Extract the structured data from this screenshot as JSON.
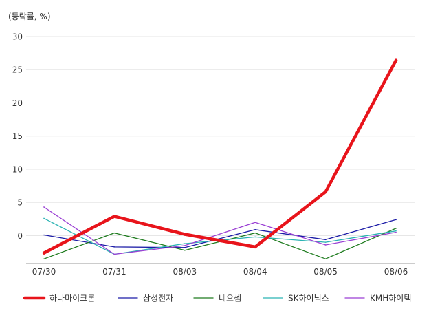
{
  "chart_data": {
    "type": "line",
    "unit_label": "(등락률, %)",
    "x": [
      "07/30",
      "07/31",
      "08/03",
      "08/04",
      "08/05",
      "08/06"
    ],
    "ylim": [
      -4.2,
      30
    ],
    "yticks": [
      0,
      5,
      10,
      15,
      20,
      25,
      30
    ],
    "grid": true,
    "legend_position": "bottom",
    "series": [
      {
        "name": "하나마이크론",
        "color": "#e8141b",
        "emphasis": true,
        "values": [
          -2.6,
          2.9,
          0.2,
          -1.7,
          6.6,
          26.4
        ]
      },
      {
        "name": "삼성전자",
        "color": "#1a1aa6",
        "emphasis": false,
        "values": [
          0.1,
          -1.7,
          -1.8,
          0.9,
          -0.6,
          2.4
        ]
      },
      {
        "name": "네오셈",
        "color": "#1e7b1e",
        "emphasis": false,
        "values": [
          -3.5,
          0.4,
          -2.2,
          0.4,
          -3.5,
          1.1
        ]
      },
      {
        "name": "SK하이닉스",
        "color": "#2bb3b3",
        "emphasis": false,
        "values": [
          2.6,
          -2.8,
          -1.2,
          -0.2,
          -1.0,
          0.7
        ]
      },
      {
        "name": "KMH하이텍",
        "color": "#9a3fd4",
        "emphasis": false,
        "values": [
          4.3,
          -2.8,
          -1.5,
          2.0,
          -1.4,
          0.5
        ]
      }
    ]
  }
}
